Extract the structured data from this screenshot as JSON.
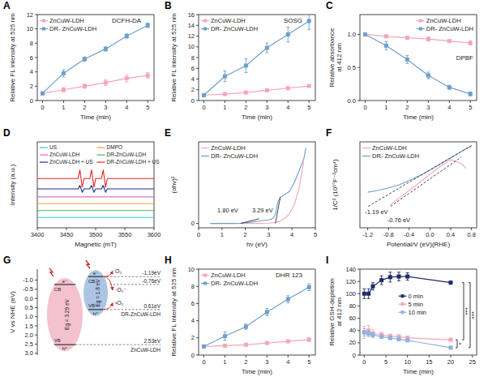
{
  "chart_data": [
    {
      "panel": "A",
      "type": "line",
      "title": "DCFH-DA",
      "x_label": "Time (min)",
      "y_label": "Relative FL intensity at 525 nm",
      "x": [
        0,
        1,
        2,
        3,
        4,
        5
      ],
      "xlim": [
        -0.25,
        5.3
      ],
      "xticks": [
        0,
        1,
        2,
        3,
        4,
        5
      ],
      "ylim": [
        0,
        12
      ],
      "yticks": [
        0,
        2,
        4,
        6,
        8,
        10,
        12
      ],
      "marker": "square",
      "legend": "top-left",
      "series": [
        {
          "name": "ZnCuW-LDH",
          "color": "#f4a6b7",
          "values": [
            1,
            1.5,
            2.0,
            2.5,
            3.1,
            3.5
          ],
          "errors": [
            0.1,
            0.3,
            0.3,
            0.4,
            0.5,
            0.4
          ]
        },
        {
          "name": "DR- ZnCuW-LDH",
          "color": "#6f9fcb",
          "values": [
            1,
            3.8,
            5.8,
            7.2,
            9.0,
            10.5
          ],
          "errors": [
            0.1,
            0.5,
            0.3,
            0.3,
            0.3,
            0.3
          ]
        }
      ]
    },
    {
      "panel": "B",
      "type": "line",
      "title": "SOSG",
      "x_label": "Time (min)",
      "y_label": "Relative FL intensity at 525 nm",
      "x": [
        0,
        1,
        2,
        3,
        4,
        5
      ],
      "xlim": [
        -0.25,
        5.3
      ],
      "xticks": [
        0,
        1,
        2,
        3,
        4,
        5
      ],
      "ylim": [
        0,
        16
      ],
      "yticks": [
        0,
        2,
        4,
        6,
        8,
        10,
        12,
        14,
        16
      ],
      "marker": "square",
      "legend": "top-left",
      "series": [
        {
          "name": "ZnCuW-LDH",
          "color": "#f4a6b7",
          "values": [
            1,
            1.2,
            1.5,
            1.9,
            2.3,
            2.7
          ],
          "errors": [
            0.1,
            0.2,
            0.2,
            0.2,
            0.2,
            0.2
          ]
        },
        {
          "name": "DR- ZnCuW-LDH",
          "color": "#6f9fcb",
          "values": [
            1,
            4.5,
            6.5,
            9.8,
            12.3,
            14.8
          ],
          "errors": [
            0.1,
            1.0,
            1.3,
            0.9,
            1.4,
            1.6
          ]
        }
      ]
    },
    {
      "panel": "C",
      "type": "line",
      "title": "DPBF",
      "x_label": "Time (min)",
      "y_label": "Relative absorbance at 412 nm",
      "x": [
        0,
        1,
        2,
        3,
        4,
        5
      ],
      "xlim": [
        -0.25,
        5.3
      ],
      "xticks": [
        0,
        1,
        2,
        3,
        4,
        5
      ],
      "ylim": [
        0,
        1.3
      ],
      "yticks": [
        {
          "value": 0,
          "label": "0.0"
        },
        0.5,
        {
          "value": 1,
          "label": "1.0"
        }
      ],
      "marker": "square",
      "legend": "top-right",
      "series": [
        {
          "name": "ZnCuW-LDH",
          "color": "#f4a6b7",
          "values": [
            1,
            0.97,
            0.95,
            0.93,
            0.9,
            0.87
          ],
          "errors": [
            0.01,
            0.02,
            0.02,
            0.03,
            0.02,
            0.03
          ]
        },
        {
          "name": "DR- ZnCuW-LDH",
          "color": "#6f9fcb",
          "values": [
            1,
            0.83,
            0.62,
            0.38,
            0.2,
            0.1
          ],
          "errors": [
            0.01,
            0.06,
            0.06,
            0.05,
            0.03,
            0.03
          ]
        }
      ]
    },
    {
      "panel": "D",
      "type": "line",
      "x_label": "Magnetic (mT)",
      "y_label": "Intensity (a.u.)",
      "x": [
        3400,
        3470,
        3473,
        3477,
        3480,
        3490,
        3493,
        3497,
        3500,
        3510,
        3513,
        3517,
        3520,
        3600
      ],
      "xlim": [
        3400,
        3600
      ],
      "xticks": [
        3400,
        3450,
        3500,
        3550,
        3600
      ],
      "ylim": [
        0,
        15
      ],
      "tick_labels": "x",
      "legend": "top",
      "series": [
        {
          "name": "US",
          "color": "#3cc6d4",
          "values": [
            1.8,
            1.8,
            1.8,
            1.8,
            1.8,
            1.8,
            1.8,
            1.8,
            1.8,
            1.8,
            1.8,
            1.8,
            1.8,
            1.8
          ]
        },
        {
          "name": "ZnCuW-LDH",
          "color": "#e26fc0",
          "values": [
            5.4,
            5.4,
            5.4,
            5.4,
            5.4,
            5.4,
            5.4,
            5.4,
            5.4,
            5.4,
            5.4,
            5.4,
            5.4,
            5.4
          ]
        },
        {
          "name": "ZnCuW-LDH + US",
          "color": "#1f2d8a",
          "values": [
            6.8,
            6.8,
            7.4,
            6.2,
            6.8,
            6.8,
            7.4,
            6.2,
            6.8,
            6.8,
            7.4,
            6.2,
            6.8,
            6.8
          ]
        },
        {
          "name": "DMPO",
          "color": "#f0a33a",
          "values": [
            4.2,
            4.2,
            4.2,
            4.2,
            4.2,
            4.2,
            4.2,
            4.2,
            4.2,
            4.2,
            4.2,
            4.2,
            4.2,
            4.2
          ]
        },
        {
          "name": "DR-ZnCuW-LDH",
          "color": "#4caf50",
          "values": [
            3.0,
            3.0,
            3.0,
            3.0,
            3.0,
            3.0,
            3.0,
            3.0,
            3.0,
            3.0,
            3.0,
            3.0,
            3.0,
            3.0
          ]
        },
        {
          "name": "DR-ZnCuW-LDH + US",
          "color": "#e32626",
          "values": [
            8.6,
            8.6,
            10.1,
            7.1,
            8.6,
            8.6,
            10.1,
            7.1,
            8.6,
            8.6,
            10.1,
            7.1,
            8.6,
            8.6
          ]
        }
      ]
    },
    {
      "panel": "E",
      "type": "line",
      "x_label": "hν (eV)",
      "y_label": "(αhν)²",
      "xlim": [
        0,
        5
      ],
      "xticks": [
        0,
        1,
        2,
        3,
        4,
        5
      ],
      "ylim": [
        -1.5,
        28
      ],
      "yticks": [
        0
      ],
      "legend": "top-left",
      "series": [
        {
          "name": "ZnCuW-LDH",
          "color": "#f4a6b7",
          "x": [
            0.5,
            1,
            1.5,
            2,
            2.5,
            3,
            3.3,
            3.5,
            3.7,
            3.9,
            4.1,
            4.3,
            4.5
          ],
          "values": [
            0,
            0,
            0,
            0,
            0,
            0.1,
            0.3,
            0.8,
            1.8,
            3.5,
            6.5,
            12,
            21
          ]
        },
        {
          "name": "DR- ZnCuW-LDH",
          "color": "#6f9fcb",
          "x": [
            0.5,
            1,
            1.5,
            1.8,
            2.2,
            2.6,
            3.0,
            3.2,
            3.3,
            3.4,
            3.5,
            3.7,
            3.9,
            4.1,
            4.3,
            4.5,
            4.6
          ],
          "values": [
            0,
            0,
            0,
            0.1,
            0.4,
            0.8,
            1.2,
            1.8,
            3.5,
            7.5,
            9,
            10,
            11,
            14,
            18,
            22,
            26
          ]
        }
      ],
      "annotations": [
        {
          "text": "1.80 eV",
          "x": 1.8,
          "y": 0,
          "x2": 2.6,
          "y2": 1.6
        },
        {
          "text": "3.29 eV",
          "x": 3.29,
          "y": 0,
          "x2": 3.5,
          "y2": 9
        }
      ]
    },
    {
      "panel": "F",
      "type": "line",
      "x_label": "Potential/V (eV)(RHE)",
      "y_label": "1/C² (10¹⁰F⁻²cm⁴)",
      "xlim": [
        -1.35,
        0.9
      ],
      "xticks": [
        -1.2,
        -0.8,
        -0.4,
        {
          "value": 0,
          "label": "0.0"
        },
        0.4,
        0.8
      ],
      "ylim": [
        -3.5,
        10.5
      ],
      "tick_labels": "x",
      "legend": "top-left",
      "series": [
        {
          "name": "ZnCuW-LDH",
          "color": "#f4a6b7",
          "x": [
            -0.76,
            -0.6,
            -0.4,
            -0.2,
            0,
            0.2,
            0.4,
            0.6,
            0.7
          ],
          "values": [
            0.3,
            1.3,
            2.6,
            3.9,
            5.2,
            6.5,
            7.6,
            7.0,
            6.2
          ]
        },
        {
          "name": "DR- ZnCuW-LDH",
          "color": "#6f9fcb",
          "x": [
            -1.2,
            -1.0,
            -0.8,
            -0.6,
            -0.4,
            -0.2,
            0,
            0.2,
            0.4,
            0.6,
            0.8
          ],
          "values": [
            2.3,
            2.6,
            3.0,
            3.5,
            4.2,
            5.0,
            5.9,
            6.9,
            7.9,
            8.9,
            9.8
          ]
        }
      ],
      "annotations": [
        {
          "text": "-1.19 eV",
          "x": -1.19,
          "y": 0,
          "x2": 0.8,
          "y2": 9.9,
          "line_style": "dashed"
        },
        {
          "text": "-0.76 eV",
          "x": -0.76,
          "y": 0,
          "x2": 0.6,
          "y2": 8.0,
          "line_style": "dashed"
        }
      ]
    },
    {
      "panel": "G",
      "type": "band",
      "y_label": "V vs NHE (eV)",
      "ylim": [
        3.1,
        -1.6
      ],
      "yticks": [
        {
          "value": -1,
          "label": "-1.0"
        },
        -0.5,
        {
          "value": 0,
          "label": "0.0"
        },
        0.5,
        {
          "value": 1,
          "label": "1.0"
        },
        1.5,
        {
          "value": 2,
          "label": "2.0"
        },
        2.5,
        {
          "value": 3,
          "label": "3.0"
        }
      ],
      "bands": [
        {
          "name": "ZnCuW-LDH",
          "color": "#f2b6c6",
          "cb": -0.76,
          "vb": 2.53,
          "gap_label": "Eg = 3.29 eV"
        },
        {
          "name": "DR-ZnCuW-LDH",
          "color": "#9dbbe0",
          "cb": -1.19,
          "vb": 0.61,
          "gap_label": "Eg = 1.8 eV"
        }
      ],
      "levels": [
        {
          "value": -1.19,
          "label": "-1.19eV"
        },
        {
          "value": -0.76,
          "label": "-0.76eV"
        },
        {
          "value": 0.61,
          "label": "0.61eV"
        },
        {
          "value": 2.53,
          "label": "2.53eV"
        }
      ],
      "cb_label": "CB",
      "vb_label": "VB",
      "electron_label": "e⁻",
      "hole_label": "h⁺",
      "species": [
        "O₂",
        "·O₂⁻",
        "¹O₂"
      ]
    },
    {
      "panel": "H",
      "type": "line",
      "title": "DHR 123",
      "x_label": "Time (min)",
      "y_label": "Relative FL intensity at 525 nm",
      "x": [
        0,
        1,
        2,
        3,
        4,
        5
      ],
      "xlim": [
        -0.25,
        5.3
      ],
      "xticks": [
        0,
        1,
        2,
        3,
        4,
        5
      ],
      "ylim": [
        0,
        10
      ],
      "yticks": [
        0,
        2,
        4,
        6,
        8,
        10
      ],
      "marker": "square",
      "legend": "top-left",
      "series": [
        {
          "name": "ZnCuW-LDH",
          "color": "#f4a6b7",
          "values": [
            1,
            1.1,
            1.2,
            1.4,
            1.6,
            1.8
          ],
          "errors": [
            0.1,
            0.1,
            0.1,
            0.1,
            0.1,
            0.2
          ]
        },
        {
          "name": "DR- ZnCuW-LDH",
          "color": "#6f9fcb",
          "values": [
            1,
            2.2,
            3.3,
            5.0,
            6.5,
            7.9
          ],
          "errors": [
            0.1,
            0.5,
            0.3,
            0.4,
            0.4,
            0.4
          ]
        }
      ]
    },
    {
      "panel": "I",
      "type": "line",
      "x_label": "Time (min)",
      "y_label": "Relative GSH-depletion at 412 nm",
      "x": [
        0,
        1,
        2,
        4,
        6,
        8,
        10,
        20
      ],
      "xlim": [
        -1,
        26
      ],
      "xticks": [
        0,
        5,
        10,
        15,
        20,
        25
      ],
      "ylim": [
        0,
        140
      ],
      "yticks": [
        0,
        20,
        40,
        60,
        80,
        100,
        120,
        140
      ],
      "marker": "square",
      "legend": "center",
      "series": [
        {
          "name": "0 min",
          "color": "#1f2a68",
          "values": [
            100,
            100,
            112,
            122,
            127,
            128,
            128,
            118
          ],
          "errors": [
            8,
            8,
            6,
            7,
            8,
            7,
            6,
            2
          ]
        },
        {
          "name": "5 min",
          "color": "#f4a6b7",
          "values": [
            37,
            40,
            35,
            33,
            31,
            30,
            28,
            25
          ],
          "errors": [
            10,
            8,
            6,
            4,
            3,
            3,
            3,
            2
          ]
        },
        {
          "name": "10 min",
          "color": "#8fb2dd",
          "values": [
            37,
            35,
            33,
            30,
            28,
            26,
            24,
            12
          ],
          "errors": [
            6,
            5,
            4,
            3,
            3,
            3,
            2,
            2
          ]
        }
      ],
      "significance": [
        {
          "text": "*",
          "between": [
            "5 min",
            "10 min"
          ]
        },
        {
          "text": "***",
          "between": [
            "0 min",
            "5 min"
          ]
        },
        {
          "text": "***",
          "between": [
            "0 min",
            "10 min"
          ]
        }
      ]
    }
  ]
}
